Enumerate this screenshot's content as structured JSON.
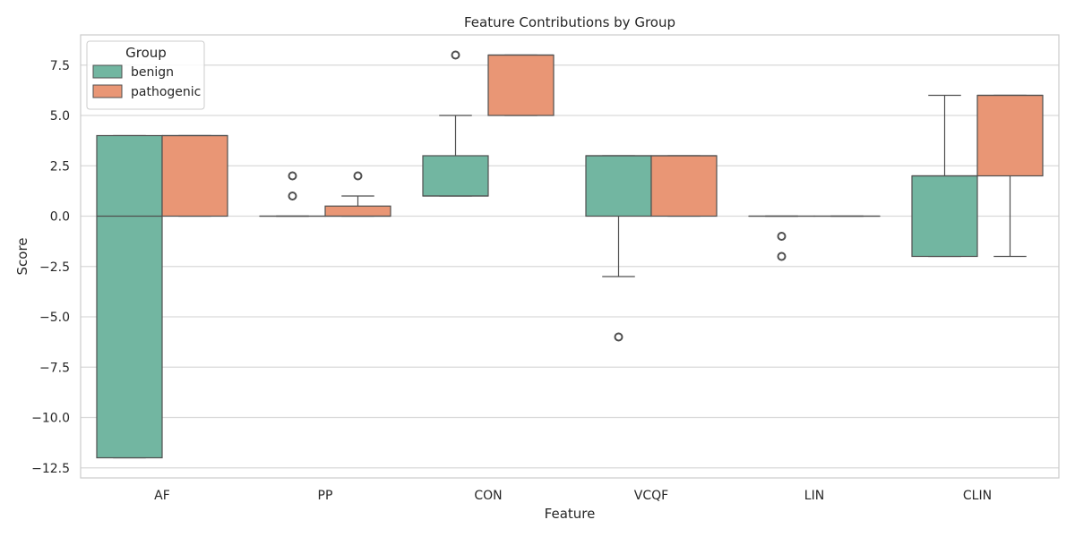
{
  "chart_data": {
    "type": "box",
    "title": "Feature Contributions by Group",
    "xlabel": "Feature",
    "ylabel": "Score",
    "ylim": [
      -13,
      9
    ],
    "yticks": [
      7.5,
      5.0,
      2.5,
      0.0,
      -2.5,
      -5.0,
      -7.5,
      -10.0,
      -12.5
    ],
    "ytick_labels": [
      "7.5",
      "5.0",
      "2.5",
      "0.0",
      "−2.5",
      "−5.0",
      "−7.5",
      "−10.0",
      "−12.5"
    ],
    "categories": [
      "AF",
      "PP",
      "CON",
      "VCQF",
      "LIN",
      "CLIN"
    ],
    "grid": true,
    "legend": {
      "title": "Group",
      "placement": "top-left"
    },
    "series": [
      {
        "name": "benign",
        "color": "#72b6a1",
        "boxes": [
          {
            "whislo": -12,
            "q1": -12,
            "med": 0,
            "q3": 4,
            "whishi": 4,
            "fliers": []
          },
          {
            "whislo": 0,
            "q1": 0,
            "med": 0,
            "q3": 0,
            "whishi": 0,
            "fliers": [
              1,
              2
            ]
          },
          {
            "whislo": 1,
            "q1": 1,
            "med": 1,
            "q3": 3,
            "whishi": 5,
            "fliers": [
              8
            ]
          },
          {
            "whislo": -3,
            "q1": 0,
            "med": 3,
            "q3": 3,
            "whishi": 3,
            "fliers": [
              -6
            ]
          },
          {
            "whislo": 0,
            "q1": 0,
            "med": 0,
            "q3": 0,
            "whishi": 0,
            "fliers": [
              -1,
              -2
            ]
          },
          {
            "whislo": -2,
            "q1": -2,
            "med": 2,
            "q3": 2,
            "whishi": 6,
            "fliers": []
          }
        ]
      },
      {
        "name": "pathogenic",
        "color": "#e99675",
        "boxes": [
          {
            "whislo": 0,
            "q1": 0,
            "med": 4,
            "q3": 4,
            "whishi": 4,
            "fliers": []
          },
          {
            "whislo": 0,
            "q1": 0,
            "med": 0,
            "q3": 0.5,
            "whishi": 1,
            "fliers": [
              2
            ]
          },
          {
            "whislo": 5,
            "q1": 5,
            "med": 8,
            "q3": 8,
            "whishi": 8,
            "fliers": []
          },
          {
            "whislo": 0,
            "q1": 0,
            "med": 3,
            "q3": 3,
            "whishi": 3,
            "fliers": []
          },
          {
            "whislo": 0,
            "q1": 0,
            "med": 0,
            "q3": 0,
            "whishi": 0,
            "fliers": []
          },
          {
            "whislo": -2,
            "q1": 2,
            "med": 6,
            "q3": 6,
            "whishi": 6,
            "fliers": []
          }
        ]
      }
    ]
  }
}
